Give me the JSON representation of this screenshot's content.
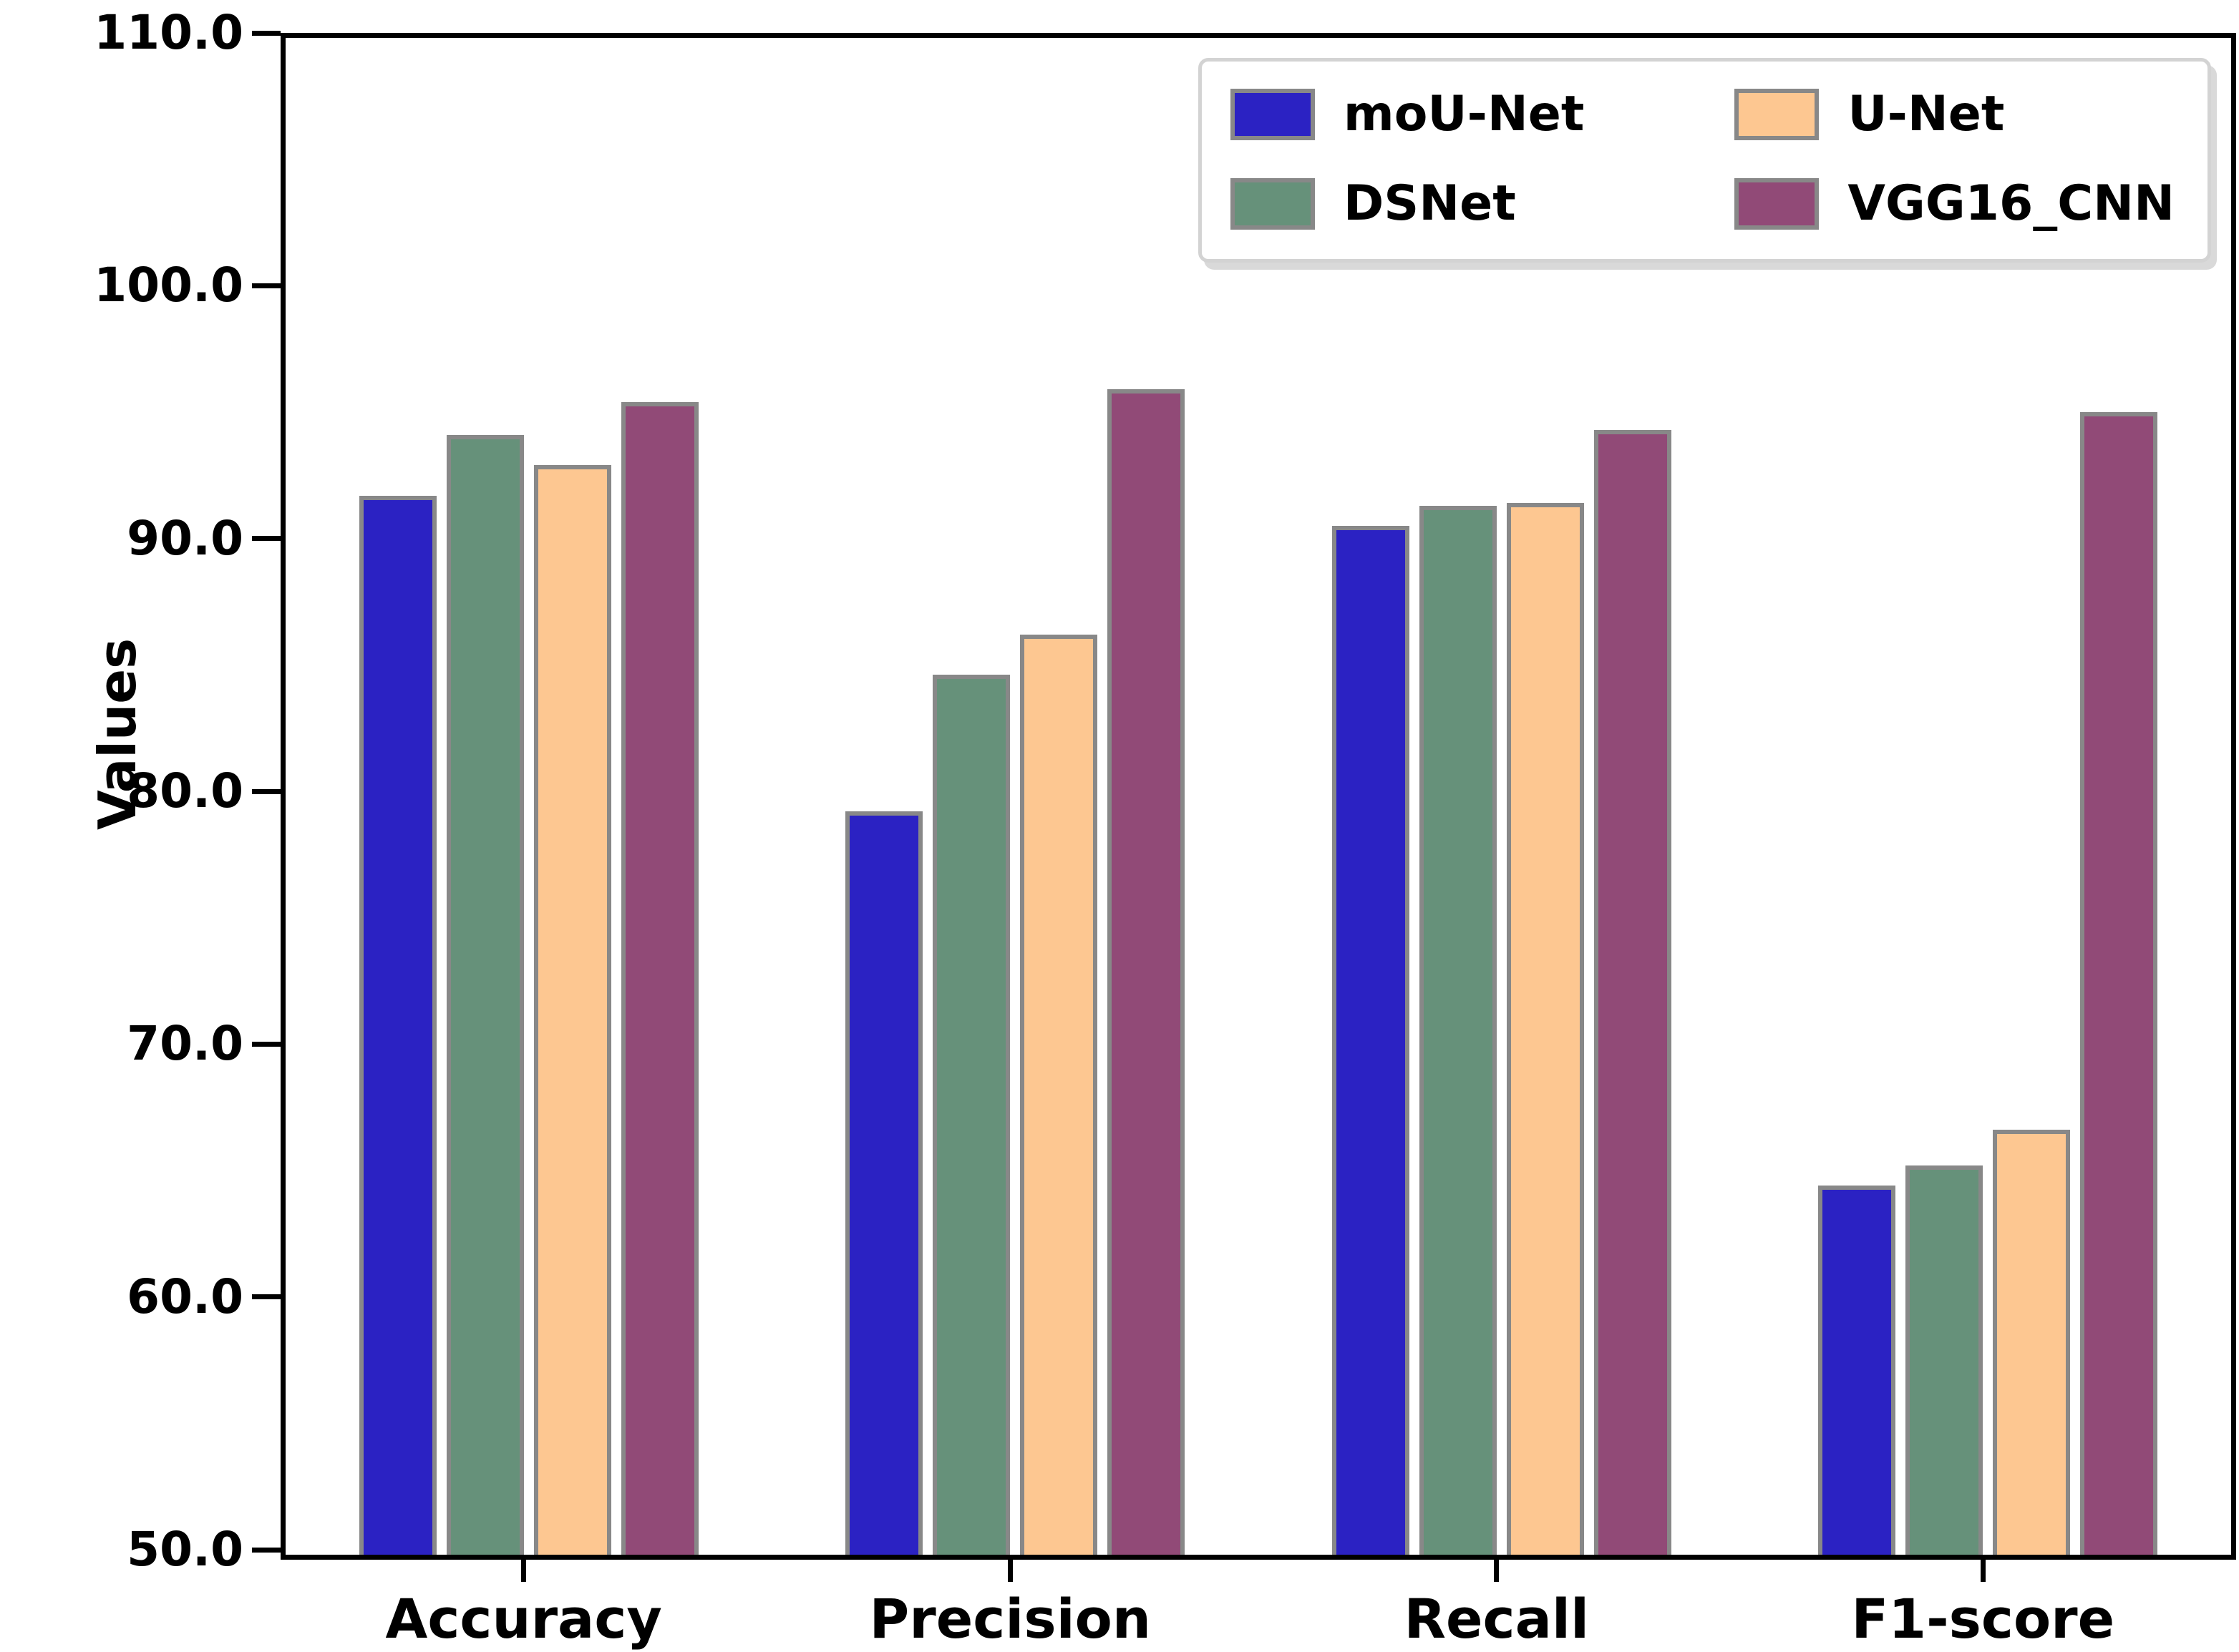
{
  "figure": {
    "background": "#ffffff",
    "spine_color": "#000000",
    "bar_edge_color": "#888888",
    "legend_border_color": "#d3d3d3"
  },
  "chart_data": {
    "type": "bar",
    "title": "",
    "xlabel": "",
    "ylabel": "Values",
    "categories": [
      "Accuracy",
      "Precision",
      "Recall",
      "F1-score"
    ],
    "series": [
      {
        "name": "moU-Net",
        "color": "#2b22c3",
        "values": [
          91.9,
          79.4,
          90.7,
          64.6
        ]
      },
      {
        "name": "DSNet",
        "color": "#66917a",
        "values": [
          94.3,
          84.8,
          91.5,
          65.4
        ]
      },
      {
        "name": "U-Net",
        "color": "#fdc791",
        "values": [
          93.1,
          86.4,
          91.6,
          66.8
        ]
      },
      {
        "name": "VGG16_CNN",
        "color": "#914a77",
        "values": [
          95.6,
          96.1,
          94.5,
          95.2
        ]
      }
    ],
    "ylim": [
      50,
      110
    ],
    "ytick_labels": [
      "50.0",
      "60.0",
      "70.0",
      "80.0",
      "90.0",
      "100.0",
      "110.0"
    ],
    "ytick_values": [
      50,
      60,
      70,
      80,
      90,
      100,
      110
    ],
    "grid": false,
    "legend_position": "upper right",
    "legend_columns": 2
  }
}
